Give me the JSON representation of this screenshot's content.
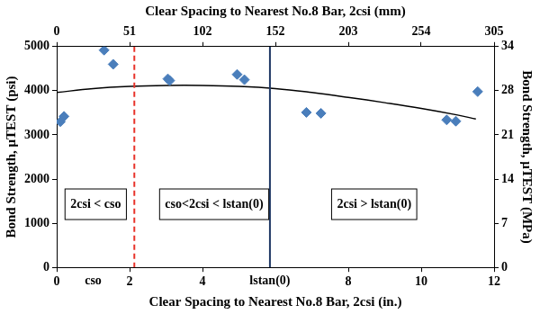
{
  "chart_data": {
    "type": "scatter",
    "x_label": "Clear Spacing to Nearest No.8 Bar, 2csi (in.)",
    "x2_label": "Clear Spacing to Nearest No.8 Bar, 2csi (mm)",
    "y_label": "Bond Strength, μTEST (psi)",
    "y2_label": "Bond Strength, μTEST (MPa)",
    "xlim": [
      0,
      12
    ],
    "xticks": [
      0,
      2,
      4,
      8,
      10,
      12
    ],
    "x2lim": [
      0,
      304.8
    ],
    "x2ticks": [
      0,
      {
        "value": 50.8,
        "label": "51"
      },
      {
        "value": 101.6,
        "label": "102"
      },
      {
        "value": 152.4,
        "label": "152"
      },
      {
        "value": 203.2,
        "label": "203"
      },
      {
        "value": 254,
        "label": "254"
      },
      {
        "value": 304.8,
        "label": "305"
      }
    ],
    "ylim": [
      0,
      5000
    ],
    "yticks": [
      0,
      1000,
      2000,
      3000,
      4000,
      5000
    ],
    "y2lim": [
      0,
      34.47
    ],
    "y2ticks": [
      0,
      {
        "value": 6.895,
        "label": "7"
      },
      {
        "value": 13.79,
        "label": "14"
      },
      {
        "value": 20.68,
        "label": "21"
      },
      {
        "value": 27.58,
        "label": "28"
      },
      {
        "value": 34.47,
        "label": "34"
      }
    ],
    "grid": false,
    "series": [
      {
        "type": "scatter",
        "color": "#4a7ebb",
        "marker": "diamond",
        "x": [
          0.1,
          0.2,
          1.3,
          1.55,
          3.05,
          3.1,
          4.95,
          5.15,
          6.85,
          7.25,
          10.7,
          10.95,
          11.55
        ],
        "values": [
          3300,
          3420,
          4920,
          4600,
          4270,
          4230,
          4370,
          4250,
          3510,
          3490,
          3340,
          3310,
          3980
        ]
      },
      {
        "type": "line",
        "color": "#000000",
        "line_style": "solid",
        "x": [
          0,
          1,
          2,
          3,
          4,
          5,
          6,
          7,
          8,
          9,
          10,
          11,
          11.5
        ],
        "values": [
          3960,
          4050,
          4100,
          4120,
          4120,
          4100,
          4050,
          3960,
          3850,
          3730,
          3600,
          3450,
          3360
        ]
      }
    ],
    "vlines": [
      {
        "x": 2.13,
        "color": "#e8332a",
        "line_style": "dashed"
      },
      {
        "x": 5.85,
        "color": "#1f3864",
        "line_style": "solid"
      }
    ],
    "annotations": [
      {
        "text": "cso",
        "x": 1.0
      },
      {
        "text": "lstan(0)",
        "x": 5.85
      },
      {
        "text": "2csi < cso",
        "x": 1.07,
        "y": 1430
      },
      {
        "text": "cso<2csi < lstan(0)",
        "x": 4.32,
        "y": 1430
      },
      {
        "text": "2csi > lstan(0)",
        "x": 8.71,
        "y": 1430
      }
    ],
    "legend": false
  }
}
